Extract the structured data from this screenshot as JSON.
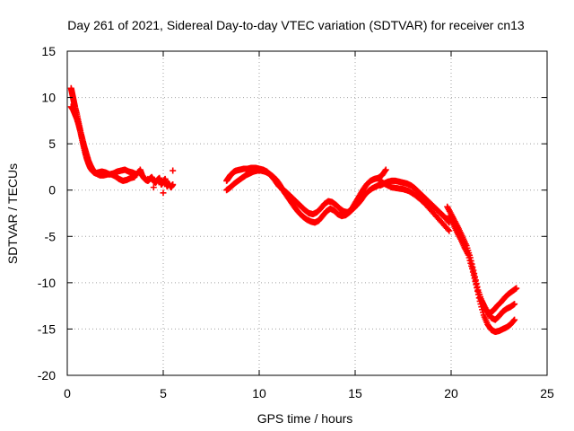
{
  "chart_data": {
    "type": "scatter",
    "title": "Day 261 of 2021, Sidereal Day-to-day VTEC variation (SDTVAR) for receiver cn13",
    "xlabel": "GPS time / hours",
    "ylabel": "SDTVAR / TECUs",
    "xlim": [
      0,
      25
    ],
    "ylim": [
      -20,
      15
    ],
    "xticks": [
      0,
      5,
      10,
      15,
      20,
      25
    ],
    "yticks": [
      15,
      10,
      5,
      0,
      -5,
      -10,
      -15,
      -20
    ],
    "grid": true,
    "marker": "plus",
    "colors": {
      "series": "#ff0000",
      "axes": "#000000",
      "grid": "#a0a0a0"
    },
    "series": [
      {
        "name": "SDTVAR",
        "x": [
          0.2,
          0.25,
          0.3,
          0.35,
          0.4,
          0.5,
          0.6,
          0.7,
          0.8,
          0.9,
          1.0,
          1.1,
          1.2,
          1.3,
          1.4,
          1.5,
          1.6,
          1.8,
          2.0,
          2.2,
          2.4,
          2.6,
          2.8,
          3.0,
          3.2,
          3.4,
          3.6,
          0.2,
          0.3,
          0.4,
          0.5,
          0.6,
          0.7,
          0.8,
          0.9,
          1.0,
          1.1,
          1.2,
          1.3,
          1.4,
          1.5,
          1.7,
          1.9,
          2.1,
          2.3,
          2.5,
          2.7,
          2.9,
          3.1,
          3.3,
          3.5,
          3.8,
          3.9,
          4.0,
          4.1,
          4.2,
          4.3,
          4.4,
          4.5,
          4.6,
          4.7,
          4.8,
          4.9,
          5.0,
          5.1,
          5.2,
          5.3,
          5.4,
          5.5,
          5.0,
          4.5,
          4.2,
          5.5,
          8.3,
          8.4,
          8.5,
          8.6,
          8.7,
          8.8,
          9.0,
          9.2,
          9.4,
          9.6,
          9.8,
          10.0,
          10.2,
          10.4,
          10.6,
          10.8,
          11.0,
          11.2,
          11.4,
          11.6,
          11.8,
          12.0,
          12.2,
          12.4,
          12.6,
          12.8,
          13.0,
          13.2,
          13.4,
          13.6,
          13.8,
          14.0,
          14.2,
          14.4,
          14.6,
          14.8,
          15.0,
          15.2,
          15.4,
          15.6,
          15.8,
          16.0,
          16.2,
          16.4,
          16.6,
          8.3,
          8.5,
          8.7,
          8.9,
          9.1,
          9.3,
          9.5,
          9.7,
          9.9,
          10.1,
          10.3,
          10.5,
          10.7,
          10.9,
          11.1,
          11.3,
          11.5,
          11.7,
          11.9,
          12.1,
          12.3,
          12.5,
          12.7,
          12.9,
          13.1,
          13.3,
          13.5,
          13.7,
          13.9,
          14.1,
          14.3,
          14.5,
          14.7,
          14.9,
          15.1,
          15.3,
          15.5,
          15.7,
          15.9,
          16.1,
          16.3,
          16.3,
          16.5,
          16.7,
          16.9,
          17.1,
          17.3,
          17.5,
          17.7,
          17.9,
          18.1,
          18.3,
          18.5,
          18.7,
          18.9,
          19.1,
          19.3,
          19.5,
          19.7,
          19.9,
          16.3,
          16.6,
          16.9,
          17.2,
          17.5,
          17.8,
          18.1,
          18.4,
          18.7,
          19.0,
          19.3,
          19.6,
          19.9,
          19.8,
          20.0,
          20.2,
          20.4,
          20.6,
          20.8,
          21.0,
          21.2,
          21.4,
          21.6,
          21.8,
          22.0,
          22.2,
          22.4,
          22.6,
          22.8,
          23.0,
          23.2,
          23.4,
          19.9,
          20.1,
          20.3,
          20.5,
          20.7,
          20.9,
          21.1,
          21.3,
          21.5,
          21.7,
          21.9,
          22.1,
          22.3,
          22.5,
          22.7,
          22.9,
          23.1,
          23.3,
          21.5,
          21.7,
          21.9,
          22.1,
          22.3,
          22.5,
          22.7,
          22.9,
          23.1,
          23.3
        ],
        "y": [
          11.0,
          10.5,
          10.0,
          9.5,
          9.0,
          8.2,
          7.2,
          6.2,
          5.2,
          4.3,
          3.5,
          2.9,
          2.4,
          2.1,
          1.9,
          1.8,
          1.9,
          2.0,
          1.9,
          1.7,
          1.8,
          2.0,
          2.1,
          2.2,
          2.0,
          1.9,
          1.7,
          9.0,
          8.7,
          8.2,
          7.7,
          7.0,
          6.2,
          5.4,
          4.6,
          3.9,
          3.2,
          2.7,
          2.3,
          2.0,
          1.8,
          1.6,
          1.6,
          1.7,
          1.7,
          1.5,
          1.2,
          1.0,
          1.1,
          1.3,
          1.4,
          2.2,
          1.6,
          1.3,
          1.1,
          1.0,
          1.2,
          1.4,
          1.0,
          0.8,
          1.1,
          1.3,
          0.6,
          0.9,
          1.2,
          0.4,
          0.7,
          0.3,
          0.6,
          -0.3,
          0.3,
          1.2,
          2.1,
          1.0,
          1.3,
          1.6,
          1.8,
          2.0,
          2.1,
          2.2,
          2.3,
          2.3,
          2.4,
          2.4,
          2.3,
          2.2,
          2.0,
          1.6,
          1.1,
          0.5,
          0.1,
          -0.2,
          -0.6,
          -1.0,
          -1.4,
          -1.8,
          -2.2,
          -2.5,
          -2.6,
          -2.4,
          -2.0,
          -1.5,
          -1.2,
          -1.3,
          -1.6,
          -2.0,
          -2.3,
          -2.4,
          -2.1,
          -1.4,
          -0.7,
          0.0,
          0.6,
          1.0,
          1.2,
          1.3,
          1.6,
          2.2,
          0.0,
          0.3,
          0.7,
          1.0,
          1.3,
          1.6,
          1.8,
          2.0,
          2.1,
          2.1,
          2.0,
          1.8,
          1.5,
          1.1,
          0.5,
          -0.2,
          -0.8,
          -1.4,
          -2.0,
          -2.5,
          -2.9,
          -3.2,
          -3.4,
          -3.5,
          -3.3,
          -2.8,
          -2.3,
          -2.0,
          -2.2,
          -2.6,
          -2.8,
          -2.7,
          -2.4,
          -2.0,
          -1.6,
          -1.1,
          -0.5,
          -0.1,
          0.2,
          0.4,
          0.6,
          0.5,
          0.7,
          0.9,
          1.0,
          1.0,
          0.9,
          0.8,
          0.7,
          0.5,
          0.2,
          -0.2,
          -0.6,
          -1.0,
          -1.4,
          -1.8,
          -2.2,
          -2.6,
          -3.0,
          -3.5,
          1.0,
          0.6,
          0.3,
          0.2,
          0.1,
          -0.1,
          -0.5,
          -1.0,
          -1.6,
          -2.3,
          -3.0,
          -3.7,
          -4.4,
          -1.8,
          -2.6,
          -3.4,
          -4.2,
          -5.1,
          -6.0,
          -7.3,
          -9.0,
          -10.8,
          -12.0,
          -12.9,
          -13.3,
          -13.0,
          -12.5,
          -12.1,
          -11.6,
          -11.2,
          -10.9,
          -10.6,
          -2.8,
          -3.6,
          -4.5,
          -5.3,
          -6.2,
          -7.0,
          -8.5,
          -10.2,
          -12.0,
          -13.5,
          -14.5,
          -15.1,
          -15.3,
          -15.2,
          -15.0,
          -14.8,
          -14.5,
          -14.0,
          -11.6,
          -12.4,
          -13.2,
          -13.8,
          -14.0,
          -13.6,
          -13.1,
          -12.8,
          -12.6,
          -12.3
        ]
      }
    ]
  }
}
